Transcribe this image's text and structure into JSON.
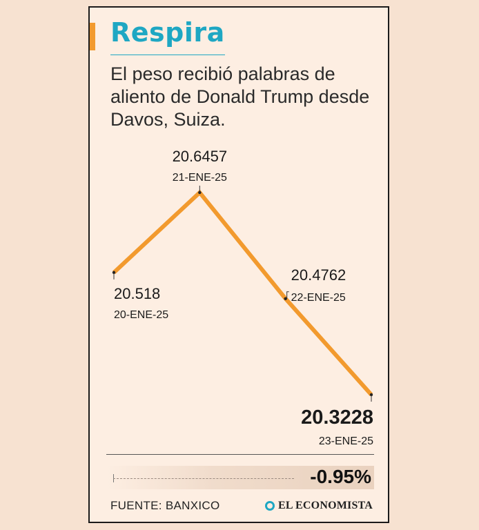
{
  "header": {
    "title": "Respira",
    "subtitle": "El peso recibió palabras de aliento de Donald Trump desde Davos, Suiza."
  },
  "chart_data": {
    "type": "line",
    "title": "Respira",
    "categories": [
      "20-ENE-25",
      "21-ENE-25",
      "22-ENE-25",
      "23-ENE-25"
    ],
    "values": [
      20.518,
      20.6457,
      20.4762,
      20.3228
    ],
    "value_labels": [
      "20.518",
      "20.6457",
      "20.4762",
      "20.3228"
    ],
    "xlabel": "",
    "ylabel": "",
    "ylim": [
      20.3228,
      20.6457
    ],
    "grid": false,
    "line_color": "#f29a2e"
  },
  "summary": {
    "change": "-0.95%"
  },
  "footer": {
    "source": "FUENTE: BANXICO",
    "brand": "EL ECONOMISTA"
  },
  "colors": {
    "accent": "#f29a2e",
    "brand": "#1ea7c3"
  }
}
